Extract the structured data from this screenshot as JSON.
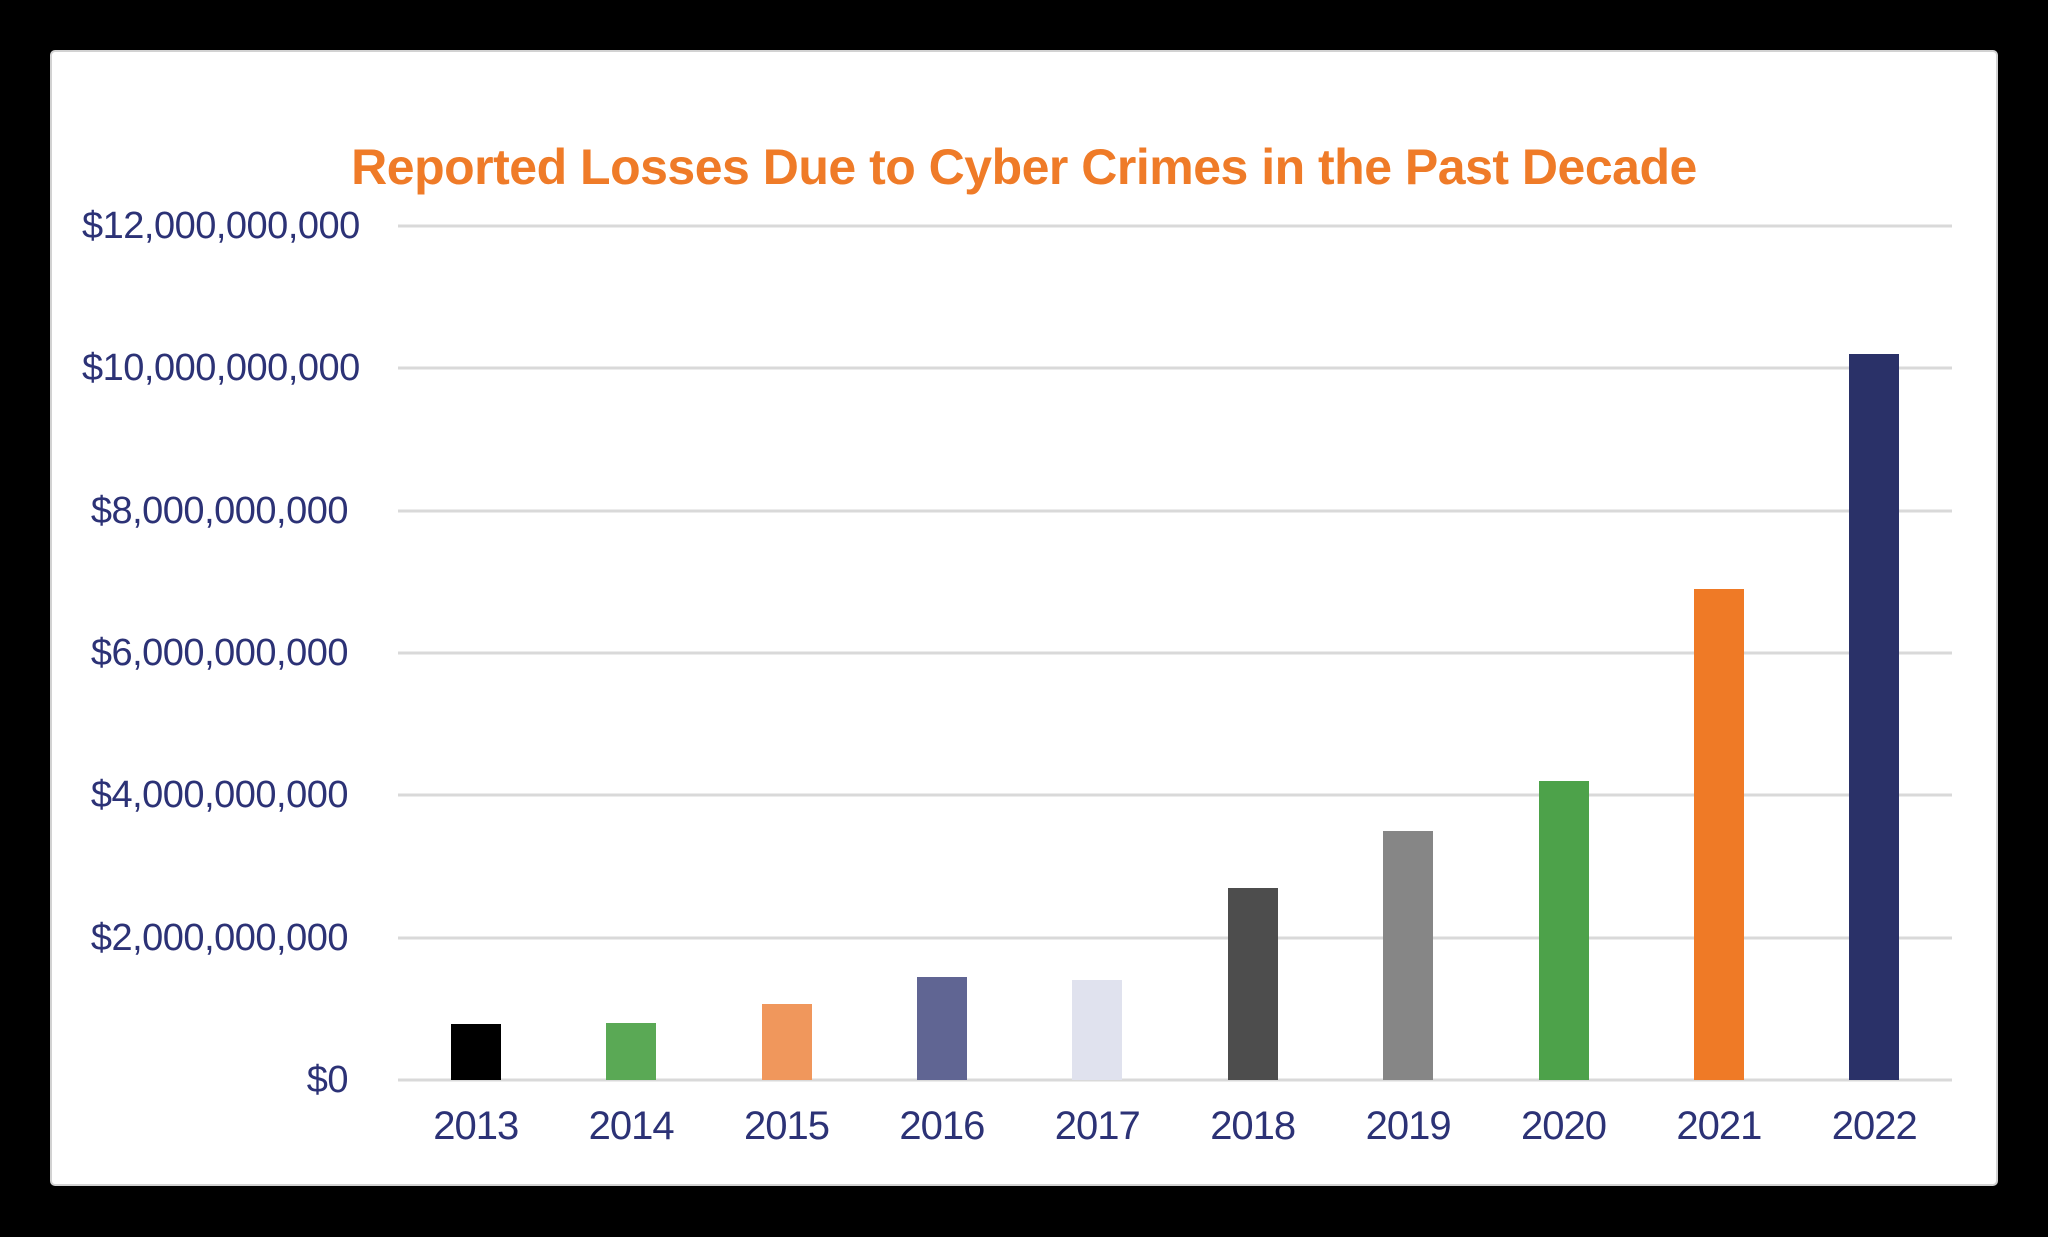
{
  "frame": {
    "background_color": "#000000",
    "card_background_color": "#ffffff",
    "card_border_color": "#d2d2d2"
  },
  "title": {
    "text": "Reported Losses Due to Cyber Crimes in the Past Decade",
    "color": "#EF7B28"
  },
  "chart_data": {
    "type": "bar",
    "title": "Reported Losses Due to Cyber Crimes in the Past Decade",
    "xlabel": "",
    "ylabel": "",
    "categories": [
      "2013",
      "2014",
      "2015",
      "2016",
      "2017",
      "2018",
      "2019",
      "2020",
      "2021",
      "2022"
    ],
    "values_usd": [
      780000000,
      800000000,
      1070000000,
      1450000000,
      1400000000,
      2700000000,
      3500000000,
      4200000000,
      6900000000,
      10200000000
    ],
    "values_billions": [
      0.78,
      0.8,
      1.07,
      1.45,
      1.4,
      2.7,
      3.5,
      4.2,
      6.9,
      10.2
    ],
    "bar_colors": [
      "#000000",
      "#5AA955",
      "#F0975C",
      "#606593",
      "#E0E2EE",
      "#4D4D4D",
      "#868686",
      "#4DA24A",
      "#EF7A26",
      "#2A3168"
    ],
    "y_tick_labels": [
      "$12,000,000,000",
      "$10,000,000,000",
      "$8,000,000,000",
      "$6,000,000,000",
      "$4,000,000,000",
      "$2,000,000,000",
      "$0"
    ],
    "y_tick_values": [
      12000000000,
      10000000000,
      8000000000,
      6000000000,
      4000000000,
      2000000000,
      0
    ],
    "ylim": [
      0,
      12000000000
    ],
    "grid": true,
    "legend": false,
    "axis_label_color": "#2C3276",
    "gridline_color": "#D9D9D9"
  }
}
